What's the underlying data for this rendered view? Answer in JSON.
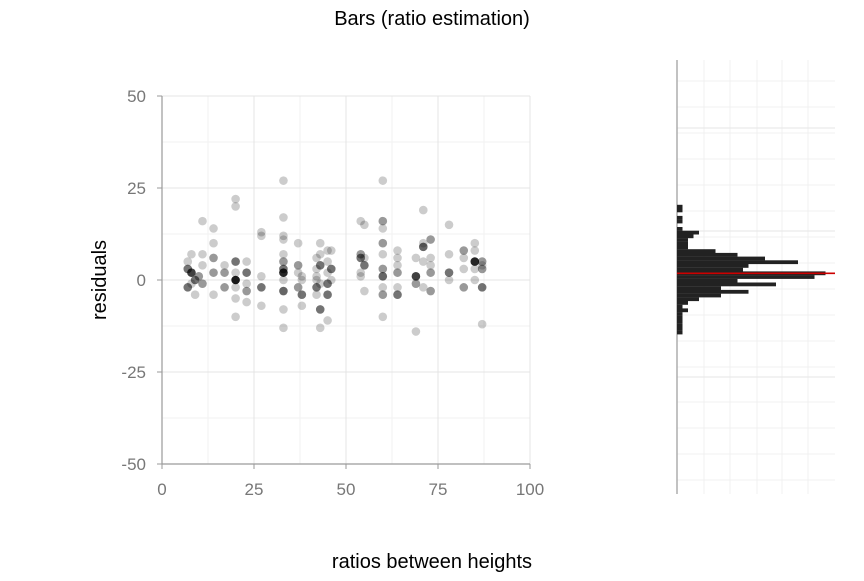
{
  "chart_data": {
    "type": "scatter",
    "title": "Bars (ratio estimation)",
    "xlabel": "ratios between heights",
    "ylabel": "residuals",
    "xlim": [
      0,
      100
    ],
    "ylim": [
      -50,
      50
    ],
    "xticks": [
      "0",
      "25",
      "50",
      "75",
      "100"
    ],
    "yticks": [
      "50",
      "25",
      "0",
      "-25",
      "-50"
    ],
    "grid": true,
    "point_color": "#000000",
    "reference_line_color": "#cc0000",
    "bar_color": "#222222",
    "points": [
      {
        "x": 7,
        "y": 5,
        "a": 0.2
      },
      {
        "x": 7,
        "y": 3,
        "a": 0.55
      },
      {
        "x": 7,
        "y": -2,
        "a": 0.55
      },
      {
        "x": 8,
        "y": 7,
        "a": 0.2
      },
      {
        "x": 8,
        "y": 2,
        "a": 0.75
      },
      {
        "x": 8,
        "y": -1,
        "a": 0.2
      },
      {
        "x": 9,
        "y": -4,
        "a": 0.2
      },
      {
        "x": 9,
        "y": 0,
        "a": 0.55
      },
      {
        "x": 10,
        "y": 1,
        "a": 0.4
      },
      {
        "x": 11,
        "y": 16,
        "a": 0.2
      },
      {
        "x": 11,
        "y": 7,
        "a": 0.2
      },
      {
        "x": 11,
        "y": 4,
        "a": 0.2
      },
      {
        "x": 11,
        "y": -1,
        "a": 0.4
      },
      {
        "x": 14,
        "y": 14,
        "a": 0.2
      },
      {
        "x": 14,
        "y": 10,
        "a": 0.2
      },
      {
        "x": 14,
        "y": 6,
        "a": 0.4
      },
      {
        "x": 14,
        "y": 2,
        "a": 0.4
      },
      {
        "x": 14,
        "y": -4,
        "a": 0.2
      },
      {
        "x": 17,
        "y": 4,
        "a": 0.2
      },
      {
        "x": 17,
        "y": 2,
        "a": 0.4
      },
      {
        "x": 17,
        "y": -2,
        "a": 0.4
      },
      {
        "x": 20,
        "y": 22,
        "a": 0.2
      },
      {
        "x": 20,
        "y": 20,
        "a": 0.2
      },
      {
        "x": 20,
        "y": 5,
        "a": 0.55
      },
      {
        "x": 20,
        "y": 2,
        "a": 0.2
      },
      {
        "x": 20,
        "y": 0,
        "a": 0.9
      },
      {
        "x": 20,
        "y": -2,
        "a": 0.2
      },
      {
        "x": 20,
        "y": -5,
        "a": 0.2
      },
      {
        "x": 20,
        "y": -10,
        "a": 0.2
      },
      {
        "x": 23,
        "y": 5,
        "a": 0.2
      },
      {
        "x": 23,
        "y": 2,
        "a": 0.55
      },
      {
        "x": 23,
        "y": -1,
        "a": 0.2
      },
      {
        "x": 23,
        "y": -3,
        "a": 0.4
      },
      {
        "x": 23,
        "y": -6,
        "a": 0.2
      },
      {
        "x": 27,
        "y": 13,
        "a": 0.2
      },
      {
        "x": 27,
        "y": 12,
        "a": 0.2
      },
      {
        "x": 27,
        "y": 1,
        "a": 0.2
      },
      {
        "x": 27,
        "y": -2,
        "a": 0.55
      },
      {
        "x": 27,
        "y": -7,
        "a": 0.2
      },
      {
        "x": 33,
        "y": 27,
        "a": 0.2
      },
      {
        "x": 33,
        "y": 17,
        "a": 0.2
      },
      {
        "x": 33,
        "y": 12,
        "a": 0.2
      },
      {
        "x": 33,
        "y": 11,
        "a": 0.2
      },
      {
        "x": 33,
        "y": 7,
        "a": 0.2
      },
      {
        "x": 33,
        "y": 5,
        "a": 0.4
      },
      {
        "x": 33,
        "y": 3,
        "a": 0.55
      },
      {
        "x": 33,
        "y": 2,
        "a": 0.85
      },
      {
        "x": 33,
        "y": 0,
        "a": 0.2
      },
      {
        "x": 33,
        "y": -3,
        "a": 0.6
      },
      {
        "x": 33,
        "y": -8,
        "a": 0.2
      },
      {
        "x": 33,
        "y": -13,
        "a": 0.2
      },
      {
        "x": 37,
        "y": 10,
        "a": 0.2
      },
      {
        "x": 37,
        "y": 4,
        "a": 0.4
      },
      {
        "x": 37,
        "y": 2,
        "a": 0.2
      },
      {
        "x": 37,
        "y": -2,
        "a": 0.4
      },
      {
        "x": 38,
        "y": -4,
        "a": 0.55
      },
      {
        "x": 38,
        "y": 1,
        "a": 0.2
      },
      {
        "x": 38,
        "y": -7,
        "a": 0.2
      },
      {
        "x": 38,
        "y": 0,
        "a": 0.2
      },
      {
        "x": 42,
        "y": 6,
        "a": 0.2
      },
      {
        "x": 42,
        "y": 3,
        "a": 0.2
      },
      {
        "x": 42,
        "y": 1,
        "a": 0.2
      },
      {
        "x": 42,
        "y": 0,
        "a": 0.2
      },
      {
        "x": 42,
        "y": -2,
        "a": 0.55
      },
      {
        "x": 42,
        "y": -4,
        "a": 0.2
      },
      {
        "x": 43,
        "y": 10,
        "a": 0.2
      },
      {
        "x": 43,
        "y": 7,
        "a": 0.2
      },
      {
        "x": 43,
        "y": 4,
        "a": 0.55
      },
      {
        "x": 43,
        "y": -1,
        "a": 0.2
      },
      {
        "x": 43,
        "y": -8,
        "a": 0.55
      },
      {
        "x": 43,
        "y": -13,
        "a": 0.2
      },
      {
        "x": 45,
        "y": 8,
        "a": 0.2
      },
      {
        "x": 45,
        "y": 5,
        "a": 0.2
      },
      {
        "x": 45,
        "y": 2,
        "a": 0.2
      },
      {
        "x": 45,
        "y": -1,
        "a": 0.55
      },
      {
        "x": 45,
        "y": -4,
        "a": 0.55
      },
      {
        "x": 45,
        "y": -11,
        "a": 0.2
      },
      {
        "x": 46,
        "y": 8,
        "a": 0.2
      },
      {
        "x": 46,
        "y": 3,
        "a": 0.55
      },
      {
        "x": 46,
        "y": 0,
        "a": 0.2
      },
      {
        "x": 54,
        "y": 16,
        "a": 0.2
      },
      {
        "x": 54,
        "y": 7,
        "a": 0.4
      },
      {
        "x": 54,
        "y": 6,
        "a": 0.55
      },
      {
        "x": 54,
        "y": 2,
        "a": 0.2
      },
      {
        "x": 54,
        "y": 1,
        "a": 0.2
      },
      {
        "x": 55,
        "y": 15,
        "a": 0.2
      },
      {
        "x": 55,
        "y": 4,
        "a": 0.55
      },
      {
        "x": 55,
        "y": 6,
        "a": 0.2
      },
      {
        "x": 55,
        "y": -3,
        "a": 0.2
      },
      {
        "x": 60,
        "y": 27,
        "a": 0.2
      },
      {
        "x": 60,
        "y": 16,
        "a": 0.4
      },
      {
        "x": 60,
        "y": 14,
        "a": 0.2
      },
      {
        "x": 60,
        "y": 10,
        "a": 0.4
      },
      {
        "x": 60,
        "y": 7,
        "a": 0.2
      },
      {
        "x": 60,
        "y": 3,
        "a": 0.4
      },
      {
        "x": 60,
        "y": 1,
        "a": 0.6
      },
      {
        "x": 60,
        "y": -2,
        "a": 0.2
      },
      {
        "x": 60,
        "y": -4,
        "a": 0.4
      },
      {
        "x": 60,
        "y": -10,
        "a": 0.2
      },
      {
        "x": 64,
        "y": 8,
        "a": 0.2
      },
      {
        "x": 64,
        "y": 6,
        "a": 0.2
      },
      {
        "x": 64,
        "y": 4,
        "a": 0.2
      },
      {
        "x": 64,
        "y": 2,
        "a": 0.4
      },
      {
        "x": 64,
        "y": -2,
        "a": 0.2
      },
      {
        "x": 64,
        "y": -4,
        "a": 0.55
      },
      {
        "x": 69,
        "y": 6,
        "a": 0.2
      },
      {
        "x": 69,
        "y": 1,
        "a": 0.75
      },
      {
        "x": 69,
        "y": -1,
        "a": 0.4
      },
      {
        "x": 69,
        "y": -14,
        "a": 0.2
      },
      {
        "x": 71,
        "y": 19,
        "a": 0.2
      },
      {
        "x": 71,
        "y": 10,
        "a": 0.2
      },
      {
        "x": 71,
        "y": 9,
        "a": 0.6
      },
      {
        "x": 71,
        "y": 5,
        "a": 0.2
      },
      {
        "x": 71,
        "y": -2,
        "a": 0.2
      },
      {
        "x": 73,
        "y": 11,
        "a": 0.4
      },
      {
        "x": 73,
        "y": 6,
        "a": 0.2
      },
      {
        "x": 73,
        "y": 4,
        "a": 0.2
      },
      {
        "x": 73,
        "y": 2,
        "a": 0.4
      },
      {
        "x": 73,
        "y": -3,
        "a": 0.4
      },
      {
        "x": 78,
        "y": 15,
        "a": 0.2
      },
      {
        "x": 78,
        "y": 7,
        "a": 0.2
      },
      {
        "x": 78,
        "y": 2,
        "a": 0.55
      },
      {
        "x": 78,
        "y": 0,
        "a": 0.2
      },
      {
        "x": 82,
        "y": 8,
        "a": 0.4
      },
      {
        "x": 82,
        "y": 6,
        "a": 0.2
      },
      {
        "x": 82,
        "y": 3,
        "a": 0.2
      },
      {
        "x": 82,
        "y": -2,
        "a": 0.4
      },
      {
        "x": 85,
        "y": 10,
        "a": 0.2
      },
      {
        "x": 85,
        "y": 8,
        "a": 0.2
      },
      {
        "x": 85,
        "y": 5,
        "a": 0.85
      },
      {
        "x": 85,
        "y": 3,
        "a": 0.2
      },
      {
        "x": 85,
        "y": 0,
        "a": 0.2
      },
      {
        "x": 87,
        "y": 5,
        "a": 0.4
      },
      {
        "x": 87,
        "y": 3,
        "a": 0.4
      },
      {
        "x": 87,
        "y": 4,
        "a": 0.2
      },
      {
        "x": 87,
        "y": -2,
        "a": 0.55
      },
      {
        "x": 87,
        "y": -12,
        "a": 0.2
      }
    ],
    "reference_line_y": 1,
    "histogram": {
      "orientation": "horizontal",
      "bins": [
        {
          "y": 19,
          "count": 1
        },
        {
          "y": 18,
          "count": 1
        },
        {
          "y": 16,
          "count": 1
        },
        {
          "y": 15,
          "count": 1
        },
        {
          "y": 13,
          "count": 1
        },
        {
          "y": 12,
          "count": 4
        },
        {
          "y": 11,
          "count": 3
        },
        {
          "y": 10,
          "count": 2
        },
        {
          "y": 9,
          "count": 2
        },
        {
          "y": 8,
          "count": 2
        },
        {
          "y": 7,
          "count": 7
        },
        {
          "y": 6,
          "count": 11
        },
        {
          "y": 5,
          "count": 16
        },
        {
          "y": 4,
          "count": 22
        },
        {
          "y": 3,
          "count": 13
        },
        {
          "y": 2,
          "count": 12
        },
        {
          "y": 1,
          "count": 27
        },
        {
          "y": 0,
          "count": 25
        },
        {
          "y": -1,
          "count": 11
        },
        {
          "y": -2,
          "count": 18
        },
        {
          "y": -3,
          "count": 8
        },
        {
          "y": -4,
          "count": 13
        },
        {
          "y": -5,
          "count": 8
        },
        {
          "y": -6,
          "count": 4
        },
        {
          "y": -7,
          "count": 2
        },
        {
          "y": -8,
          "count": 1
        },
        {
          "y": -9,
          "count": 2
        },
        {
          "y": -10,
          "count": 1
        },
        {
          "y": -11,
          "count": 1
        },
        {
          "y": -12,
          "count": 1
        },
        {
          "y": -13,
          "count": 1
        },
        {
          "y": -14,
          "count": 1
        },
        {
          "y": -15,
          "count": 1
        }
      ]
    }
  }
}
